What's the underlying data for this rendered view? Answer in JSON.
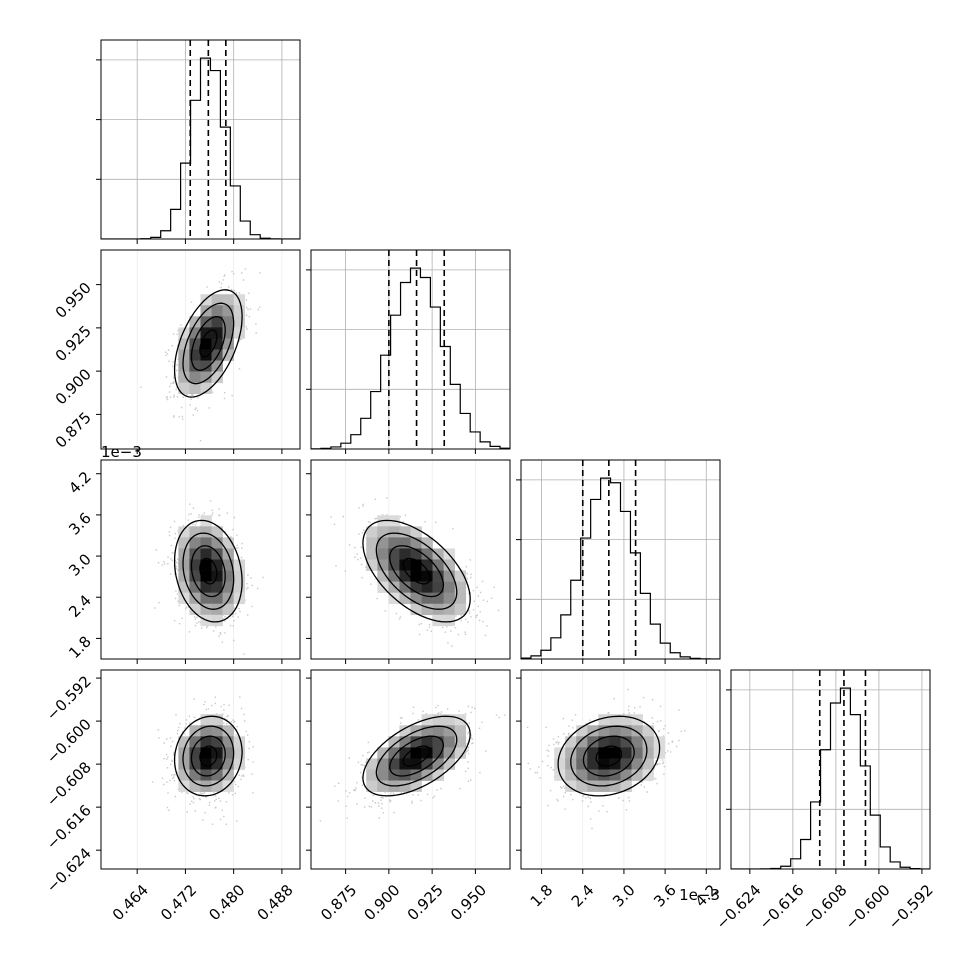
{
  "chart_data": {
    "type": "corner",
    "description_note": "",
    "parameters": [
      {
        "id": "p1",
        "range": [
          0.458,
          0.491
        ],
        "ticks": [
          0.464,
          0.472,
          0.48,
          0.488
        ],
        "tick_labels": [
          "0.464",
          "0.472",
          "0.480",
          "0.488"
        ],
        "offset_label": "",
        "mean": 0.4758,
        "sigma": 0.0028,
        "quantiles": [
          0.4728,
          0.4758,
          0.4787
        ]
      },
      {
        "id": "p2",
        "range": [
          0.855,
          0.97
        ],
        "ticks": [
          0.875,
          0.9,
          0.925,
          0.95
        ],
        "tick_labels": [
          "0.875",
          "0.900",
          "0.925",
          "0.950"
        ],
        "offset_label": "",
        "mean": 0.916,
        "sigma": 0.0155,
        "quantiles": [
          0.9,
          0.916,
          0.932
        ]
      },
      {
        "id": "p3",
        "range": [
          1.5,
          4.4
        ],
        "ticks": [
          1.8,
          2.4,
          3.0,
          3.6,
          4.2
        ],
        "tick_labels": [
          "1.8",
          "2.4",
          "3.0",
          "3.6",
          "4.2"
        ],
        "offset_label": "1e−3",
        "mean": 2.78,
        "sigma": 0.37,
        "quantiles": [
          2.4,
          2.78,
          3.17
        ]
      },
      {
        "id": "p4",
        "range": [
          -0.6275,
          -0.5905
        ],
        "ticks": [
          -0.624,
          -0.616,
          -0.608,
          -0.6,
          -0.592
        ],
        "tick_labels": [
          "−0.624",
          "−0.616",
          "−0.608",
          "−0.600",
          "−0.592"
        ],
        "offset_label": "",
        "mean": -0.6065,
        "sigma": 0.0037,
        "quantiles": [
          -0.611,
          -0.6065,
          -0.6025
        ]
      }
    ],
    "correlations": {
      "0-1": 0.5,
      "0-2": -0.2,
      "0-3": 0.1,
      "1-2": -0.55,
      "1-3": 0.55,
      "2-3": 0.2
    },
    "contour_levels_sigma": [
      0.5,
      1.0,
      1.5,
      2.0
    ],
    "histogram_bins": 20,
    "grid": true
  },
  "colors": {
    "hist": "#000000",
    "contour": "#000000",
    "density_max": "#000000",
    "scatter": "#b0b0b0",
    "grid": "#b0b0b0"
  }
}
